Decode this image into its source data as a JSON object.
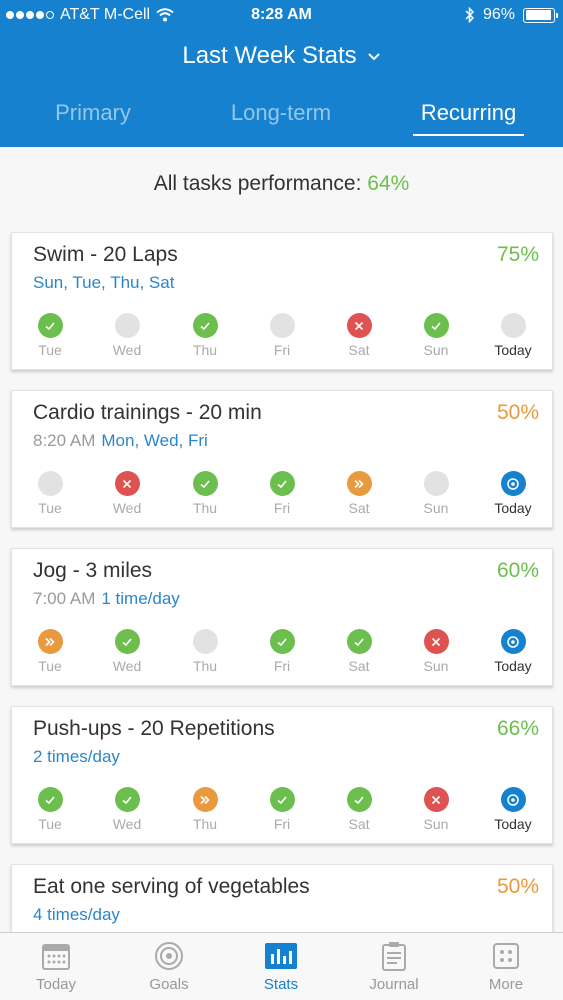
{
  "status_bar": {
    "carrier": "AT&T M-Cell",
    "time": "8:28 AM",
    "battery": "96%",
    "battery_fraction": 0.96
  },
  "header": {
    "title": "Last Week Stats",
    "tabs": [
      {
        "label": "Primary",
        "active": false
      },
      {
        "label": "Long-term",
        "active": false
      },
      {
        "label": "Recurring",
        "active": true
      }
    ]
  },
  "summary": {
    "label": "All tasks performance:",
    "value": "64%"
  },
  "colors": {
    "accent": "#1581cf",
    "done": "#6cbf4f",
    "missed": "#de5252",
    "skipped": "#ea9a3e",
    "none": "#e2e2e2"
  },
  "tasks": [
    {
      "title": "Swim - 20 Laps",
      "percent": "75%",
      "percent_color": "green",
      "time": "",
      "schedule": "Sun, Tue, Thu, Sat",
      "days": [
        {
          "label": "Tue",
          "status": "done"
        },
        {
          "label": "Wed",
          "status": "none"
        },
        {
          "label": "Thu",
          "status": "done"
        },
        {
          "label": "Fri",
          "status": "none"
        },
        {
          "label": "Sat",
          "status": "missed"
        },
        {
          "label": "Sun",
          "status": "done"
        },
        {
          "label": "Today",
          "status": "none"
        }
      ]
    },
    {
      "title": "Cardio trainings - 20 min",
      "percent": "50%",
      "percent_color": "orange",
      "time": "8:20 AM",
      "schedule": "Mon, Wed, Fri",
      "days": [
        {
          "label": "Tue",
          "status": "none"
        },
        {
          "label": "Wed",
          "status": "missed"
        },
        {
          "label": "Thu",
          "status": "done"
        },
        {
          "label": "Fri",
          "status": "done"
        },
        {
          "label": "Sat",
          "status": "skipped"
        },
        {
          "label": "Sun",
          "status": "none"
        },
        {
          "label": "Today",
          "status": "today"
        }
      ]
    },
    {
      "title": "Jog - 3 miles",
      "percent": "60%",
      "percent_color": "green",
      "time": "7:00 AM",
      "schedule": "1 time/day",
      "days": [
        {
          "label": "Tue",
          "status": "skipped"
        },
        {
          "label": "Wed",
          "status": "done"
        },
        {
          "label": "Thu",
          "status": "none"
        },
        {
          "label": "Fri",
          "status": "done"
        },
        {
          "label": "Sat",
          "status": "done"
        },
        {
          "label": "Sun",
          "status": "missed"
        },
        {
          "label": "Today",
          "status": "today"
        }
      ]
    },
    {
      "title": "Push-ups - 20 Repetitions",
      "percent": "66%",
      "percent_color": "green",
      "time": "",
      "schedule": "2 times/day",
      "days": [
        {
          "label": "Tue",
          "status": "done"
        },
        {
          "label": "Wed",
          "status": "done"
        },
        {
          "label": "Thu",
          "status": "skipped"
        },
        {
          "label": "Fri",
          "status": "done"
        },
        {
          "label": "Sat",
          "status": "done"
        },
        {
          "label": "Sun",
          "status": "missed"
        },
        {
          "label": "Today",
          "status": "today"
        }
      ]
    },
    {
      "title": "Eat one serving of vegetables",
      "percent": "50%",
      "percent_color": "orange",
      "time": "",
      "schedule": "4 times/day",
      "days": []
    }
  ],
  "tabbar": [
    {
      "label": "Today",
      "icon": "calendar-icon",
      "active": false
    },
    {
      "label": "Goals",
      "icon": "target-icon",
      "active": false
    },
    {
      "label": "Stats",
      "icon": "bar-chart-icon",
      "active": true
    },
    {
      "label": "Journal",
      "icon": "clipboard-icon",
      "active": false
    },
    {
      "label": "More",
      "icon": "grid-icon",
      "active": false
    }
  ]
}
